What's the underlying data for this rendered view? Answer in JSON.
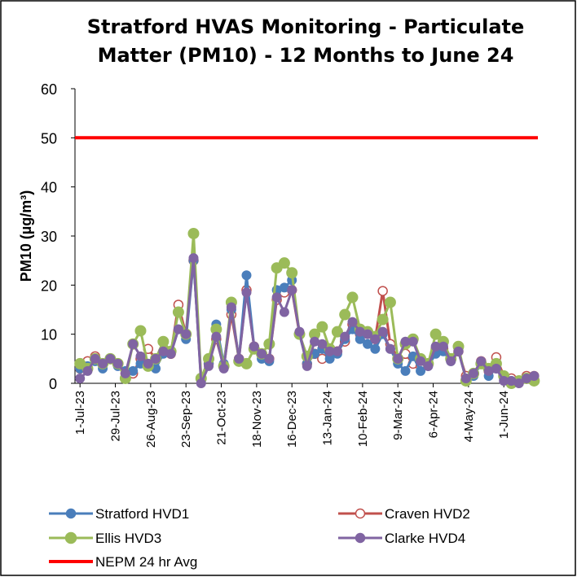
{
  "chart_data": {
    "type": "line",
    "title": "Stratford HVAS Monitoring - Particulate Matter (PM10) - 12 Months to June 24",
    "ylabel": "PM10 (µg/m³)",
    "x": [
      "2023-07-01",
      "2023-07-07",
      "2023-07-13",
      "2023-07-19",
      "2023-07-25",
      "2023-07-31",
      "2023-08-06",
      "2023-08-12",
      "2023-08-18",
      "2023-08-24",
      "2023-08-30",
      "2023-09-05",
      "2023-09-11",
      "2023-09-17",
      "2023-09-23",
      "2023-09-29",
      "2023-10-05",
      "2023-10-11",
      "2023-10-17",
      "2023-10-23",
      "2023-10-29",
      "2023-11-04",
      "2023-11-10",
      "2023-11-16",
      "2023-11-22",
      "2023-11-28",
      "2023-12-04",
      "2023-12-10",
      "2023-12-16",
      "2023-12-22",
      "2023-12-28",
      "2024-01-03",
      "2024-01-09",
      "2024-01-15",
      "2024-01-21",
      "2024-01-27",
      "2024-02-02",
      "2024-02-08",
      "2024-02-14",
      "2024-02-20",
      "2024-02-26",
      "2024-03-03",
      "2024-03-09",
      "2024-03-15",
      "2024-03-21",
      "2024-03-27",
      "2024-04-02",
      "2024-04-08",
      "2024-04-14",
      "2024-04-20",
      "2024-04-26",
      "2024-05-02",
      "2024-05-08",
      "2024-05-14",
      "2024-05-20",
      "2024-05-26",
      "2024-06-01",
      "2024-06-07",
      "2024-06-13",
      "2024-06-19",
      "2024-06-25"
    ],
    "xlim": [
      "2023-06-27",
      "2024-06-28"
    ],
    "xticks": [
      {
        "value": "2023-07-01",
        "label": "1-Jul-23"
      },
      {
        "value": "2023-07-29",
        "label": "29-Jul-23"
      },
      {
        "value": "2023-08-26",
        "label": "26-Aug-23"
      },
      {
        "value": "2023-09-23",
        "label": "23-Sep-23"
      },
      {
        "value": "2023-10-21",
        "label": "21-Oct-23"
      },
      {
        "value": "2023-11-18",
        "label": "18-Nov-23"
      },
      {
        "value": "2023-12-16",
        "label": "16-Dec-23"
      },
      {
        "value": "2024-01-13",
        "label": "13-Jan-24"
      },
      {
        "value": "2024-02-10",
        "label": "10-Feb-24"
      },
      {
        "value": "2024-03-09",
        "label": "9-Mar-24"
      },
      {
        "value": "2024-04-06",
        "label": "6-Apr-24"
      },
      {
        "value": "2024-05-04",
        "label": "4-May-24"
      },
      {
        "value": "2024-06-01",
        "label": "1-Jun-24"
      }
    ],
    "ylim": [
      0,
      60
    ],
    "yticks": [
      0,
      10,
      20,
      30,
      40,
      50,
      60
    ],
    "series": [
      {
        "name": "Stratford HVD1",
        "color": "#4a7ebb",
        "marker": "filled",
        "values": [
          3,
          3.5,
          4.5,
          3,
          5,
          3.5,
          2.5,
          2.5,
          4,
          4,
          3,
          6,
          6,
          11,
          9,
          25,
          0.5,
          4,
          12,
          4,
          15,
          5,
          22,
          7.5,
          5,
          4.5,
          19,
          19.5,
          21,
          10,
          4,
          6,
          7,
          5,
          6,
          9,
          11,
          9,
          8,
          7,
          10,
          7,
          4,
          2.5,
          5.5,
          2.5,
          3.5,
          6,
          6.5,
          4.5,
          6.5,
          1,
          1.5,
          4,
          1.5,
          3,
          1,
          0.5,
          0.5,
          1,
          1.5
        ]
      },
      {
        "name": "Craven HVD2",
        "color": "#c0504d",
        "marker": "open",
        "values": [
          3,
          4.5,
          5.5,
          4,
          5,
          4,
          2,
          2,
          5,
          7,
          5,
          6.5,
          6,
          16,
          10,
          25,
          1,
          4,
          9,
          3.5,
          14,
          5,
          19,
          7.5,
          6,
          5,
          17,
          18.5,
          19,
          10,
          4,
          6,
          5,
          6.5,
          6.5,
          8.5,
          12,
          10,
          9.5,
          9,
          18.8,
          8,
          5,
          6,
          4,
          3.5,
          4,
          7,
          7,
          5,
          6.5,
          1.5,
          2,
          4.5,
          2.5,
          5.3,
          1.5,
          1,
          0.5,
          1.5,
          1.5
        ]
      },
      {
        "name": "Ellis HVD3",
        "color": "#9bbb59",
        "marker": "filled",
        "values": [
          4,
          3,
          5,
          4,
          5,
          4,
          1,
          8,
          10.7,
          3.5,
          5,
          8.5,
          6.5,
          14.5,
          10,
          30.5,
          1,
          5,
          11,
          3.5,
          16.5,
          4.5,
          4,
          7,
          6,
          8,
          23.5,
          24.5,
          22.5,
          10,
          5.5,
          10,
          11.5,
          7,
          10.5,
          14,
          17.5,
          11,
          10.5,
          9.5,
          13,
          16.5,
          5,
          8,
          9,
          5,
          4,
          10,
          8.5,
          5,
          7.5,
          0.5,
          2,
          4,
          3,
          4,
          1.5,
          0,
          0.5,
          1,
          0.5
        ]
      },
      {
        "name": "Clarke HVD4",
        "color": "#8064a2",
        "marker": "filled",
        "values": [
          1,
          2.5,
          5,
          4,
          5,
          4,
          2,
          8,
          5.5,
          4,
          5,
          6.5,
          6,
          11,
          10,
          25.5,
          0,
          3.5,
          9.5,
          3,
          15.5,
          5,
          18.5,
          7.5,
          6,
          5,
          17.5,
          14.5,
          19,
          10.5,
          3.5,
          8.5,
          8,
          6.5,
          6.5,
          9.5,
          12.5,
          10.5,
          10,
          9,
          10.5,
          7,
          5,
          8.5,
          8.5,
          4.5,
          3.5,
          7.5,
          7.5,
          4.5,
          6.5,
          1,
          2,
          4.5,
          2.5,
          3,
          0.5,
          0.5,
          0,
          1,
          1.5
        ]
      },
      {
        "name": "NEPM 24 hr Avg",
        "color": "#ff0000",
        "marker": "none",
        "x": [
          "2023-06-27",
          "2024-06-28"
        ],
        "values": [
          50,
          50
        ]
      }
    ]
  }
}
